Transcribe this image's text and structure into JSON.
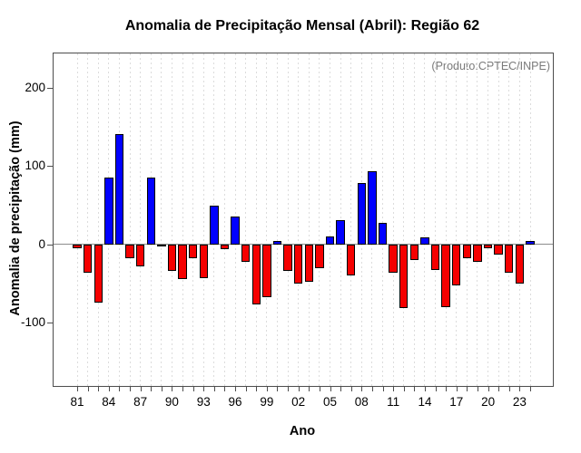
{
  "chart_data": {
    "type": "bar",
    "title": "Anomalia de Precipitação Mensal (Abril): Região 62",
    "annotation": "(Produto:CPTEC/INPE)",
    "xlabel": "Ano",
    "ylabel": "Anomalia de precipitação (mm)",
    "ylim": [
      -181,
      244
    ],
    "grid": "vertical-dashed-per-year",
    "legend": "none",
    "positive_color": "#0000ff",
    "negative_color": "#f50000",
    "bar_border_color": "#000000",
    "zero_line_color": "#8c8c8c",
    "y_tick_labels": [
      "200",
      "100",
      "0",
      "-100"
    ],
    "x_tick_labels": [
      "81",
      "84",
      "87",
      "90",
      "93",
      "96",
      "99",
      "02",
      "05",
      "08",
      "11",
      "14",
      "17",
      "20",
      "23"
    ],
    "years": [
      1981,
      1982,
      1983,
      1984,
      1985,
      1986,
      1987,
      1988,
      1989,
      1990,
      1991,
      1992,
      1993,
      1994,
      1995,
      1996,
      1997,
      1998,
      1999,
      2000,
      2001,
      2002,
      2003,
      2004,
      2005,
      2006,
      2007,
      2008,
      2009,
      2010,
      2011,
      2012,
      2013,
      2014,
      2015,
      2016,
      2017,
      2018,
      2019,
      2020,
      2021,
      2022,
      2023,
      2024
    ],
    "values": [
      -5,
      -36,
      -74,
      85,
      141,
      -18,
      -28,
      85,
      -1,
      -34,
      -44,
      -18,
      -43,
      49,
      -6,
      36,
      -22,
      -77,
      -68,
      4,
      -34,
      -50,
      -48,
      -31,
      10,
      31,
      -40,
      78,
      93,
      27,
      -36,
      -81,
      -20,
      9,
      -33,
      -80,
      -52,
      -18,
      -22,
      -5,
      -13,
      -36,
      -50,
      4
    ]
  }
}
